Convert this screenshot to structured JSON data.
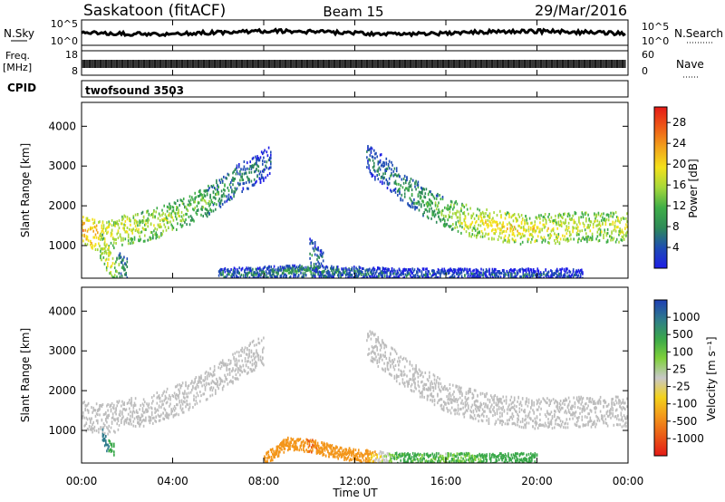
{
  "header": {
    "station": "Saskatoon (fitACF)",
    "beam": "Beam 15",
    "date": "29/Mar/2016"
  },
  "noise_panel": {
    "left_label": "N.Sky",
    "left_ticks": [
      "10^5",
      "10^0"
    ],
    "right_ticks": [
      "10^5",
      "10^0"
    ],
    "right_label": "N.Search",
    "series": [
      {
        "name": "N.Sky",
        "color": "#000000",
        "style": "solid"
      },
      {
        "name": "N.Search",
        "color": "#000000",
        "style": "dotted"
      }
    ]
  },
  "freq_panel": {
    "left_label_1": "Freq.",
    "left_label_2": "[MHz]",
    "left_ticks": [
      "18",
      "8"
    ],
    "right_ticks": [
      "60",
      "0"
    ],
    "right_label": "Nave",
    "series": [
      {
        "name": "Freq.",
        "color": "#000000",
        "style": "solid"
      },
      {
        "name": "Nave",
        "color": "#000000",
        "style": "dotted"
      }
    ]
  },
  "cpid_panel": {
    "label": "CPID",
    "mode": "twofsound 3503"
  },
  "power_colorbar": {
    "label": "Power [dB]",
    "ticks": [
      "4",
      "8",
      "12",
      "16",
      "20",
      "24",
      "28"
    ],
    "min": 0,
    "max": 31,
    "colors": [
      "#1e1ee6",
      "#1e4cb4",
      "#2e8a58",
      "#3fae48",
      "#a6d83a",
      "#f3e11b",
      "#f2a21b",
      "#ee5a17",
      "#e51a17"
    ]
  },
  "velocity_colorbar": {
    "label": "Velocity [m s⁻¹]",
    "ticks": [
      "1000",
      "500",
      "100",
      "25",
      "-25",
      "-100",
      "-500",
      "-1000"
    ],
    "colors": [
      "#1f3fb4",
      "#2e7b8c",
      "#3aa84a",
      "#7fd03a",
      "#c8c8c8",
      "#f3d21b",
      "#f3961b",
      "#ea5a17",
      "#e51a17"
    ]
  },
  "ground_scatter_color": "#bdbdbd",
  "chart_data": [
    {
      "type": "heatmap",
      "title": "Power",
      "xlabel": "",
      "ylabel": "Slant Range [km]",
      "xlim": [
        0,
        24
      ],
      "ylim": [
        180,
        4600
      ],
      "x_ticks": [
        "00:00",
        "04:00",
        "08:00",
        "12:00",
        "16:00",
        "20:00",
        "00:00"
      ],
      "y_ticks": [
        "1000",
        "2000",
        "3000",
        "4000"
      ],
      "colorbar": "Power [dB]",
      "features": [
        {
          "name": "morning F-region scatter",
          "x": [
            0.0,
            0.5,
            1.0,
            1.5,
            2.0,
            2.5,
            3.0,
            3.5,
            4.0,
            4.5,
            5.0,
            5.5,
            6.0,
            6.5,
            7.0,
            7.5,
            8.0,
            8.3
          ],
          "y_center_km": [
            1450,
            1300,
            1250,
            1350,
            1450,
            1500,
            1550,
            1650,
            1750,
            1850,
            2000,
            2150,
            2350,
            2550,
            2750,
            2900,
            3050,
            3150
          ],
          "power_db": [
            22,
            22,
            20,
            18,
            18,
            17,
            17,
            16,
            16,
            15,
            14,
            13,
            11,
            10,
            9,
            8,
            7,
            6
          ]
        },
        {
          "name": "afternoon F-region scatter",
          "x": [
            12.5,
            13.0,
            13.5,
            14.0,
            14.5,
            15.0,
            15.5,
            16.0,
            16.5,
            17.0,
            17.5,
            18.0,
            18.5,
            19.0,
            19.5,
            20.0,
            20.5,
            21.0,
            21.5,
            22.0,
            22.5,
            23.0,
            23.5,
            24.0
          ],
          "y_center_km": [
            3250,
            3000,
            2800,
            2550,
            2350,
            2150,
            2000,
            1850,
            1750,
            1650,
            1600,
            1550,
            1500,
            1450,
            1450,
            1450,
            1450,
            1450,
            1500,
            1500,
            1500,
            1500,
            1500,
            1500
          ],
          "power_db": [
            7,
            8,
            9,
            10,
            11,
            12,
            13,
            15,
            17,
            18,
            18,
            19,
            20,
            20,
            19,
            19,
            18,
            18,
            18,
            17,
            17,
            17,
            18,
            18
          ]
        },
        {
          "name": "early bottom-side scatter",
          "x": [
            0.8,
            1.0,
            1.2,
            1.5,
            2.0
          ],
          "y_center_km": [
            1050,
            800,
            600,
            500,
            450
          ],
          "power_db": [
            16,
            18,
            20,
            14,
            8
          ]
        },
        {
          "name": "near-range scatter",
          "x": [
            6.0,
            8.0,
            10.0,
            12.0,
            14.0,
            16.0,
            18.0,
            20.0,
            22.0
          ],
          "y_center_km": [
            300,
            350,
            400,
            350,
            300,
            300,
            300,
            300,
            300
          ],
          "power_db": [
            8,
            8,
            10,
            8,
            6,
            6,
            6,
            6,
            6
          ]
        },
        {
          "name": "mid-day patch",
          "x": [
            10.0,
            10.3,
            10.6
          ],
          "y_center_km": [
            850,
            700,
            500
          ],
          "power_db": [
            10,
            8,
            8
          ]
        }
      ]
    },
    {
      "type": "heatmap",
      "title": "Velocity",
      "xlabel": "Time UT",
      "ylabel": "Slant Range [km]",
      "xlim": [
        0,
        24
      ],
      "ylim": [
        180,
        4600
      ],
      "x_ticks": [
        "00:00",
        "04:00",
        "08:00",
        "12:00",
        "16:00",
        "20:00",
        "00:00"
      ],
      "y_ticks": [
        "1000",
        "2000",
        "3000",
        "4000"
      ],
      "colorbar": "Velocity [m s⁻¹]",
      "features": [
        {
          "name": "morning ground scatter",
          "x": [
            0.0,
            1.0,
            2.0,
            3.0,
            4.0,
            5.0,
            6.0,
            7.0,
            8.0
          ],
          "y_center_km": [
            1400,
            1300,
            1450,
            1550,
            1750,
            2000,
            2350,
            2750,
            3050
          ],
          "velocity": "ground scatter"
        },
        {
          "name": "afternoon ground scatter",
          "x": [
            12.5,
            14.0,
            16.0,
            18.0,
            20.0,
            22.0,
            24.0
          ],
          "y_center_km": [
            3250,
            2550,
            1850,
            1550,
            1450,
            1500,
            1500
          ],
          "velocity": "ground scatter"
        },
        {
          "name": "early ionospheric echoes",
          "x": [
            0.9,
            1.1,
            1.4
          ],
          "y_center_km": [
            900,
            650,
            550
          ],
          "velocity_ms": [
            500,
            300,
            200
          ]
        },
        {
          "name": "near-range ionospheric echoes",
          "x": [
            8.0,
            9.0,
            10.0,
            11.0,
            12.0,
            14.0,
            16.0,
            18.0,
            20.0
          ],
          "y_center_km": [
            300,
            700,
            650,
            500,
            400,
            300,
            300,
            300,
            300
          ],
          "velocity_ms": [
            -100,
            -100,
            -300,
            -200,
            -150,
            100,
            50,
            100,
            100
          ]
        }
      ]
    }
  ]
}
